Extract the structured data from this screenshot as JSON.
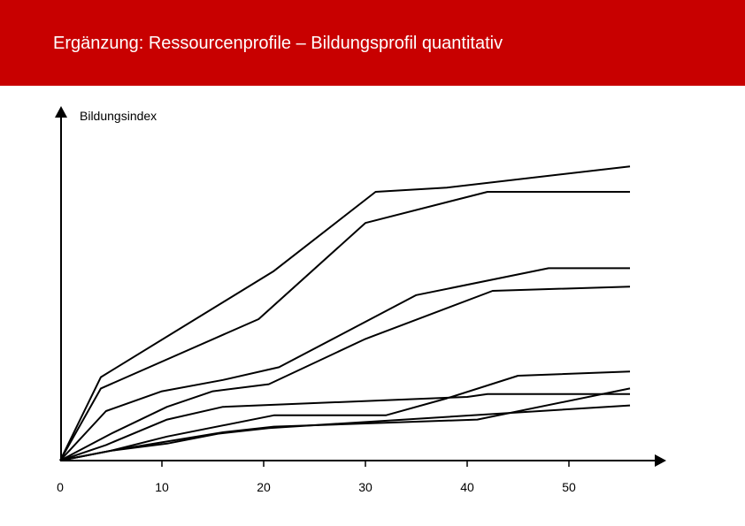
{
  "header": {
    "title": "Ergänzung: Ressourcenprofile – Bildungsprofil quantitativ",
    "background_color": "#c80000",
    "text_color": "#ffffff"
  },
  "chart_data": {
    "type": "line",
    "title": "Ergänzung: Ressourcenprofile – Bildungsprofil quantitativ",
    "xlabel": "",
    "ylabel": "Bildungsindex",
    "xlim": [
      0,
      60
    ],
    "ylim": [
      0,
      100
    ],
    "x_ticks": [
      0,
      10,
      20,
      30,
      40,
      50
    ],
    "x_tick_labels": [
      "0",
      "10",
      "20",
      "30",
      "40",
      "50"
    ],
    "y_ticks": [],
    "grid": false,
    "legend": "none",
    "line_color": "#000000",
    "series": [
      {
        "x": [
          0,
          4,
          21,
          31,
          38,
          56
        ],
        "y": [
          0,
          29.5,
          67,
          95,
          96.5,
          104
        ]
      },
      {
        "x": [
          0,
          4,
          19.5,
          30,
          42,
          56
        ],
        "y": [
          0,
          25.5,
          50,
          84,
          95,
          95
        ]
      },
      {
        "x": [
          0,
          4.5,
          10,
          16,
          21.5,
          35,
          48,
          56
        ],
        "y": [
          0,
          17.5,
          24.5,
          28.5,
          33,
          58.5,
          68,
          68
        ]
      },
      {
        "x": [
          0,
          5,
          10.5,
          15,
          20.5,
          30,
          42.5,
          56
        ],
        "y": [
          0,
          9.5,
          19,
          24.5,
          27,
          43,
          60,
          61.5
        ]
      },
      {
        "x": [
          0,
          4.5,
          10.5,
          16,
          40,
          42,
          56
        ],
        "y": [
          0,
          5.5,
          14.5,
          19,
          22.5,
          23.5,
          23.5
        ]
      },
      {
        "x": [
          0,
          5,
          10.5,
          21,
          32,
          38,
          45,
          56
        ],
        "y": [
          0,
          3.5,
          8.5,
          16,
          16,
          22,
          30,
          31.5
        ]
      },
      {
        "x": [
          0,
          5,
          16,
          21,
          41,
          56
        ],
        "y": [
          0,
          3.5,
          10,
          12,
          14.5,
          25.5
        ]
      },
      {
        "x": [
          0,
          5,
          10.5,
          15.5,
          20.5,
          56
        ],
        "y": [
          0,
          3.5,
          6,
          9.5,
          11.5,
          19.5
        ]
      }
    ]
  }
}
